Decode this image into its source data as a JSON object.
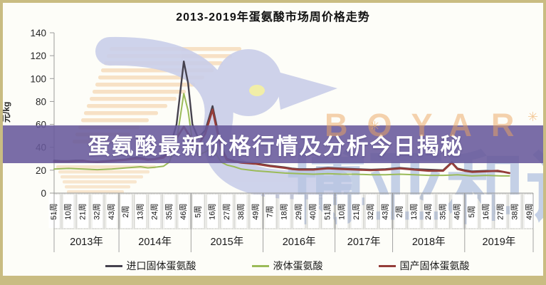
{
  "title": "2013-2019年蛋氨酸市场周价格走势",
  "frame": {
    "border_color": "#c9bc82",
    "background": "#fdfdf8"
  },
  "overlay_banner": {
    "text": "蛋氨酸最新价格行情及分析今日揭秘",
    "background": "#685a9b",
    "text_color": "#ffffff"
  },
  "watermark": {
    "brand_latin": "BOYAR",
    "brand_cn": "博亚和讯",
    "latin_color": "#eca660",
    "cn_color": "#b7c5e2",
    "dove_color": "#c9cee9",
    "stripe_color": "#f6ddbd",
    "eye_color": "#f0eda0"
  },
  "chart_data": {
    "type": "line",
    "title": "2013-2019年蛋氨酸市场周价格走势",
    "xlabel": "",
    "ylabel": "元/kg",
    "ylim": [
      0,
      140
    ],
    "yticks": [
      0,
      20,
      40,
      60,
      80,
      100,
      120,
      140
    ],
    "grid": false,
    "legend_position": "bottom",
    "categories": [
      "51周",
      "10周",
      "21周",
      "32周",
      "43周",
      "2周",
      "13周",
      "24周",
      "35周",
      "46周",
      "5周",
      "16周",
      "27周",
      "38周",
      "49周",
      "7周",
      "18周",
      "29周",
      "40周",
      "51周",
      "10周",
      "21周",
      "32周",
      "43周",
      "2周",
      "13周",
      "24周",
      "35周",
      "46周",
      "5周",
      "16周",
      "27周",
      "38周",
      "49周"
    ],
    "year_groups": [
      {
        "label": "2013年",
        "from": 0,
        "to": 4
      },
      {
        "label": "2014年",
        "from": 5,
        "to": 9
      },
      {
        "label": "2015年",
        "from": 10,
        "to": 14
      },
      {
        "label": "2016年",
        "from": 15,
        "to": 19
      },
      {
        "label": "2017年",
        "from": 20,
        "to": 23
      },
      {
        "label": "2018年",
        "from": 24,
        "to": 28
      },
      {
        "label": "2019年",
        "from": 29,
        "to": 33
      }
    ],
    "unit": "元/kg",
    "series": [
      {
        "name": "进口固体蛋氨酸",
        "color": "#46424e",
        "width": 2.4,
        "points": [
          [
            0,
            28.5
          ],
          [
            0.5,
            28
          ],
          [
            1,
            28
          ],
          [
            1.5,
            28.5
          ],
          [
            2,
            28.5
          ],
          [
            2.5,
            27.5
          ],
          [
            3,
            27.5
          ],
          [
            4,
            28.5
          ],
          [
            5,
            29.5
          ],
          [
            5.6,
            31
          ],
          [
            6,
            31
          ],
          [
            6.5,
            29.5
          ],
          [
            7,
            30
          ],
          [
            7.6,
            32
          ],
          [
            8,
            38
          ],
          [
            8.5,
            60
          ],
          [
            9,
            115
          ],
          [
            9.3,
            96
          ],
          [
            9.6,
            60
          ],
          [
            10,
            48
          ],
          [
            10.5,
            55
          ],
          [
            11,
            76
          ],
          [
            11.3,
            58
          ],
          [
            11.6,
            40
          ],
          [
            12,
            30
          ],
          [
            12.5,
            28
          ],
          [
            13,
            27
          ],
          [
            14,
            26
          ],
          [
            15,
            24
          ],
          [
            16,
            22.5
          ],
          [
            16.5,
            21.5
          ],
          [
            17,
            21
          ],
          [
            18,
            21
          ],
          [
            19,
            22
          ],
          [
            20,
            21.5
          ],
          [
            21,
            21
          ],
          [
            22,
            20.5
          ],
          [
            23,
            21
          ],
          [
            24,
            22
          ],
          [
            25,
            21
          ],
          [
            26,
            20.5
          ],
          [
            27,
            20
          ],
          [
            27.6,
            27
          ],
          [
            28,
            21.5
          ],
          [
            28.5,
            20
          ],
          [
            29,
            19
          ],
          [
            30,
            19.5
          ],
          [
            30.8,
            19
          ],
          [
            31.2,
            18.5
          ],
          [
            31.6,
            17.5
          ]
        ]
      },
      {
        "name": "液体蛋氨酸",
        "color": "#9bbb59",
        "width": 2,
        "points": [
          [
            0,
            21
          ],
          [
            1,
            21.5
          ],
          [
            2,
            21
          ],
          [
            3,
            20.5
          ],
          [
            4,
            21
          ],
          [
            5,
            22
          ],
          [
            6,
            23
          ],
          [
            6.5,
            22
          ],
          [
            7,
            22.5
          ],
          [
            7.6,
            23.5
          ],
          [
            8,
            27
          ],
          [
            8.5,
            45
          ],
          [
            9,
            87
          ],
          [
            9.3,
            72
          ],
          [
            9.6,
            45
          ],
          [
            10,
            33
          ],
          [
            10.5,
            36
          ],
          [
            11,
            40
          ],
          [
            11.3,
            33
          ],
          [
            11.6,
            27
          ],
          [
            12,
            24.5
          ],
          [
            12.5,
            23
          ],
          [
            13,
            21
          ],
          [
            14,
            19.5
          ],
          [
            15,
            18.5
          ],
          [
            16,
            17.5
          ],
          [
            17,
            17
          ],
          [
            18,
            16.5
          ],
          [
            19,
            17
          ],
          [
            20,
            16.5
          ],
          [
            21,
            16.5
          ],
          [
            22,
            16
          ],
          [
            23,
            16
          ],
          [
            24,
            16.5
          ],
          [
            25,
            16
          ],
          [
            26,
            15.5
          ],
          [
            27,
            15.5
          ],
          [
            28,
            16
          ],
          [
            29,
            15
          ],
          [
            30,
            15.5
          ],
          [
            31,
            15
          ],
          [
            31.6,
            15
          ]
        ]
      },
      {
        "name": "国产固体蛋氨酸",
        "color": "#953d39",
        "width": 2.8,
        "points": [
          [
            0,
            27.5
          ],
          [
            1,
            27.5
          ],
          [
            2,
            28
          ],
          [
            3,
            27
          ],
          [
            4,
            28
          ],
          [
            5,
            29
          ],
          [
            5.6,
            30
          ],
          [
            6,
            30
          ],
          [
            6.5,
            29
          ],
          [
            7,
            29.5
          ],
          [
            7.6,
            31
          ],
          [
            8,
            36
          ],
          [
            8.5,
            48
          ],
          [
            9,
            58
          ],
          [
            9.3,
            52
          ],
          [
            9.6,
            46
          ],
          [
            10,
            42
          ],
          [
            10.5,
            52
          ],
          [
            11,
            73
          ],
          [
            11.3,
            55
          ],
          [
            11.6,
            38
          ],
          [
            12,
            29
          ],
          [
            12.5,
            27.5
          ],
          [
            13,
            26.5
          ],
          [
            14,
            25.5
          ],
          [
            15,
            23.5
          ],
          [
            16,
            22
          ],
          [
            16.5,
            21
          ],
          [
            17,
            20.5
          ],
          [
            18,
            20.5
          ],
          [
            19,
            21.5
          ],
          [
            20,
            21
          ],
          [
            21,
            20.5
          ],
          [
            22,
            20
          ],
          [
            23,
            20.5
          ],
          [
            24,
            21.5
          ],
          [
            25,
            20.5
          ],
          [
            26,
            19.5
          ],
          [
            27,
            19.5
          ],
          [
            27.6,
            26.5
          ],
          [
            28,
            21
          ],
          [
            28.5,
            19.5
          ],
          [
            29,
            18.5
          ],
          [
            30,
            19
          ],
          [
            30.8,
            19.5
          ],
          [
            31.2,
            18.5
          ],
          [
            31.6,
            17.5
          ]
        ]
      }
    ]
  }
}
